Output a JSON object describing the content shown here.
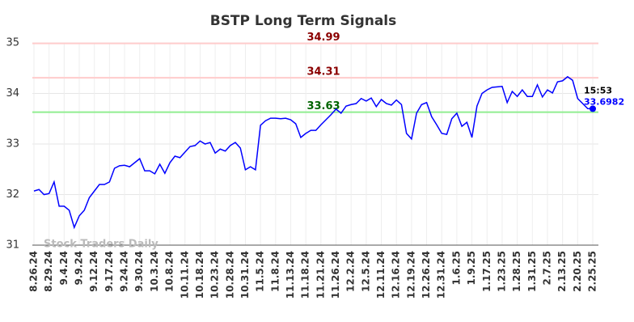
{
  "chart_data": {
    "type": "line",
    "title": "BSTP Long Term Signals",
    "watermark": "Stock Traders Daily",
    "annotation": "15:53",
    "categories": [
      "8.26.24",
      null,
      null,
      "8.29.24",
      null,
      null,
      "9.4.24",
      null,
      null,
      "9.9.24",
      null,
      null,
      "9.12.24",
      null,
      null,
      "9.17.24",
      null,
      null,
      "9.24.24",
      null,
      null,
      "9.30.24",
      null,
      null,
      "10.3.24",
      null,
      null,
      "10.8.24",
      null,
      null,
      "10.11.24",
      null,
      null,
      "10.18.24",
      null,
      null,
      "10.23.24",
      null,
      null,
      "10.28.24",
      null,
      null,
      "10.31.24",
      null,
      null,
      "11.5.24",
      null,
      null,
      "11.8.24",
      null,
      null,
      "11.13.24",
      null,
      null,
      "11.18.24",
      null,
      null,
      "11.21.24",
      null,
      null,
      "11.26.24",
      null,
      null,
      "12.2.24",
      null,
      null,
      "12.5.24",
      null,
      null,
      "12.11.24",
      null,
      null,
      "12.16.24",
      null,
      null,
      "12.19.24",
      null,
      null,
      "12.26.24",
      null,
      null,
      "12.31.24",
      null,
      null,
      "1.6.25",
      null,
      null,
      "1.9.25",
      null,
      null,
      "1.17.25",
      null,
      null,
      "1.23.25",
      null,
      null,
      "1.28.25",
      null,
      null,
      "1.31.25",
      null,
      null,
      "2.7.25",
      null,
      null,
      "2.13.25",
      null,
      null,
      "2.20.25",
      null,
      null,
      "2.25.25"
    ],
    "series": [
      {
        "name": "BSTP",
        "color": "#0000ff",
        "values": [
          32.07,
          32.1,
          32.0,
          32.02,
          32.25,
          31.77,
          31.77,
          31.69,
          31.35,
          31.58,
          31.69,
          31.94,
          32.07,
          32.2,
          32.2,
          32.25,
          32.52,
          32.57,
          32.58,
          32.55,
          32.63,
          32.71,
          32.47,
          32.47,
          32.41,
          32.6,
          32.42,
          32.63,
          32.76,
          32.73,
          32.84,
          32.95,
          32.97,
          33.06,
          33.0,
          33.03,
          32.82,
          32.9,
          32.86,
          32.97,
          33.03,
          32.92,
          32.49,
          32.55,
          32.49,
          33.37,
          33.46,
          33.51,
          33.51,
          33.5,
          33.51,
          33.48,
          33.4,
          33.13,
          33.21,
          33.27,
          33.27,
          33.38,
          33.48,
          33.58,
          33.69,
          33.61,
          33.75,
          33.78,
          33.8,
          33.9,
          33.85,
          33.91,
          33.74,
          33.88,
          33.8,
          33.77,
          33.87,
          33.78,
          33.21,
          33.1,
          33.61,
          33.78,
          33.82,
          33.54,
          33.38,
          33.21,
          33.19,
          33.5,
          33.61,
          33.35,
          33.43,
          33.13,
          33.75,
          34.0,
          34.07,
          34.12,
          34.13,
          34.14,
          33.82,
          34.04,
          33.94,
          34.07,
          33.94,
          33.94,
          34.17,
          33.93,
          34.07,
          34.01,
          34.23,
          34.25,
          34.33,
          34.26,
          33.9,
          33.8,
          33.7,
          33.6982
        ]
      }
    ],
    "reference_lines": [
      {
        "value": 34.99,
        "color": "#ffcccc",
        "label_color": "#8b0000"
      },
      {
        "value": 34.31,
        "color": "#ffcccc",
        "label_color": "#8b0000"
      },
      {
        "value": 33.63,
        "color": "#90ee90",
        "label_color": "#006400"
      }
    ],
    "ylim": [
      31,
      35
    ],
    "yticks": [
      31,
      32,
      33,
      34,
      35
    ],
    "grid": true
  }
}
